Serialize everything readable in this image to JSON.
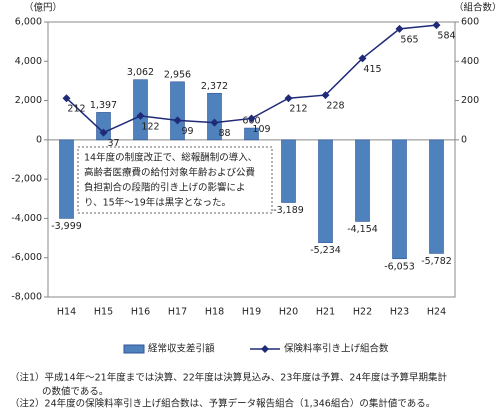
{
  "chart_data": {
    "type": "bar_line",
    "y_unit": "（億円）",
    "y2_unit": "（組合数）",
    "categories": [
      "H14",
      "H15",
      "H16",
      "H17",
      "H18",
      "H19",
      "H20",
      "H21",
      "H22",
      "H23",
      "H24"
    ],
    "series": [
      {
        "name": "経常収支差引額",
        "type": "bar",
        "color": "#4f81bd",
        "values": [
          -3999,
          1397,
          3062,
          2956,
          2372,
          600,
          -3189,
          -5234,
          -4154,
          -6053,
          -5782
        ],
        "value_labels": [
          "-3,999",
          "1,397",
          "3,062",
          "2,956",
          "2,372",
          "600",
          "-3,189",
          "-5,234",
          "-4,154",
          "-6,053",
          "-5,782"
        ]
      },
      {
        "name": "保険料率引き上げ組合数",
        "type": "line",
        "axis": "y2",
        "color": "#1f2a78",
        "values": [
          212,
          37,
          122,
          99,
          88,
          109,
          212,
          228,
          415,
          565,
          584
        ]
      }
    ],
    "ylim": [
      -8000,
      6000
    ],
    "yticks": [
      {
        "value": 6000,
        "label": "6,000"
      },
      {
        "value": 4000,
        "label": "4,000"
      },
      {
        "value": 2000,
        "label": "2,000"
      },
      0,
      {
        "value": -2000,
        "label": "-2,000"
      },
      {
        "value": -4000,
        "label": "-4,000"
      },
      {
        "value": -6000,
        "label": "-6,000"
      },
      {
        "value": -8000,
        "label": "-8,000"
      }
    ],
    "y2lim": [
      -800,
      600
    ],
    "y2ticks": [
      600,
      400,
      200,
      0
    ],
    "grid": false,
    "annotation": [
      "14年度の制度改正で、総報酬制の導入、",
      "高齢者医療費の給付対象年齢および公費",
      "負担割合の段階的引き上げの影響によ",
      "り、15年～19年は黒字となった。"
    ],
    "notes": [
      "（注1）平成14年～21年度までは決算、22年度は決算見込み、23年度は予算、24年度は予算早期集計",
      "の数値である。",
      "（注2）24年度の保険料率引き上げ組合数は、予算データ報告組合（1,346組合）の集計値である。"
    ]
  }
}
